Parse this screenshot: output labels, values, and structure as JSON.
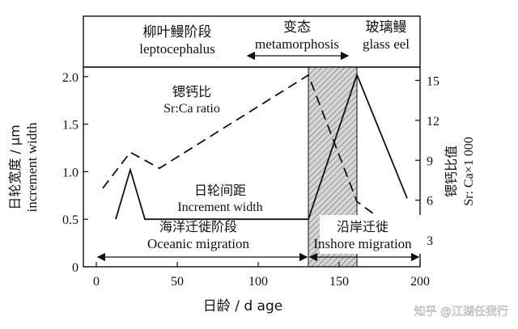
{
  "chart_data": {
    "type": "line",
    "xlabel": "日龄 / d age",
    "ylabel_left_cn": "日轮宽度 / μm",
    "ylabel_left_en": "increment width",
    "ylabel_right_cn": "锶钙比值",
    "ylabel_right_en": "Sr: Ca×1 000",
    "xlim": [
      -8,
      200
    ],
    "ylim_left": [
      0,
      2.1
    ],
    "ylim_right": [
      1,
      16
    ],
    "x_ticks": [
      0,
      50,
      100,
      150,
      200
    ],
    "y_left_ticks": [
      0,
      0.5,
      1.0,
      1.5,
      2.0
    ],
    "y_right_ticks": [
      3,
      6,
      9,
      12,
      15
    ],
    "tick_labels_left": [
      "0",
      "0.5",
      "1.0",
      "1.5",
      "2.0"
    ],
    "tick_labels_right": [
      "3",
      "6",
      "9",
      "12",
      "15"
    ],
    "tick_labels_x": [
      "0",
      "50",
      "100",
      "150",
      "200"
    ],
    "stages": [
      {
        "cn": "柳叶鳗阶段",
        "en": "leptocephalus"
      },
      {
        "cn": "变态",
        "en": "metamorphosis"
      },
      {
        "cn": "玻璃鳗",
        "en": "glass eel"
      }
    ],
    "shaded_region": {
      "x": [
        131,
        161
      ],
      "label": "metamorphosis"
    },
    "series": [
      {
        "name_cn": "日轮间距",
        "name_en": "Increment width",
        "axis": "left",
        "style": "solid",
        "x": [
          12,
          21,
          30,
          131,
          161,
          192
        ],
        "y": [
          0.5,
          1.02,
          0.5,
          0.5,
          2.02,
          0.72
        ]
      },
      {
        "name_cn": "锶钙比",
        "name_en": "Sr:Ca ratio",
        "axis": "right",
        "style": "dashed",
        "x": [
          4,
          21,
          39,
          131,
          161,
          190
        ],
        "y": [
          6.9,
          9.6,
          8.4,
          15.4,
          5.9,
          3.3
        ]
      }
    ],
    "periods": [
      {
        "cn": "海洋迁徙阶段",
        "en": "Oceanic migration",
        "x": [
          0,
          131
        ]
      },
      {
        "cn": "沿岸迁徙",
        "en": "Inshore migration",
        "x": [
          131,
          200
        ]
      }
    ]
  },
  "watermark": "知乎 @江湖任我行"
}
